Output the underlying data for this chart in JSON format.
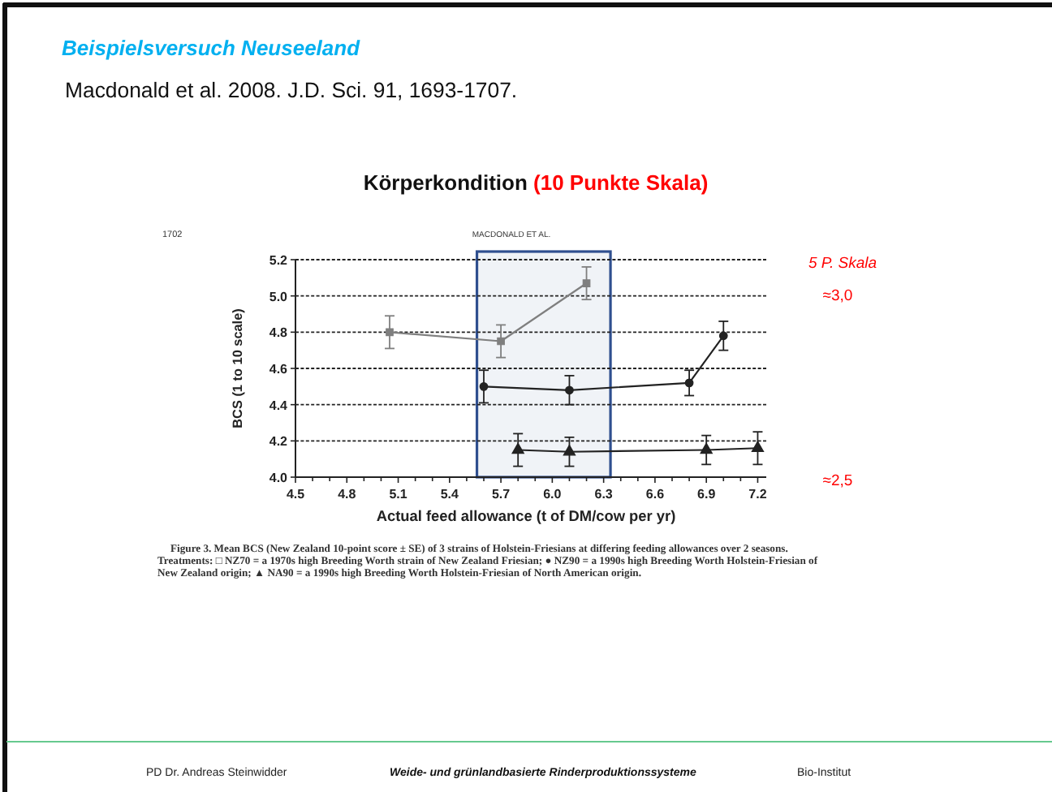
{
  "chart_data": {
    "type": "line",
    "title": "Körperkondition (10 Punkte Skala)",
    "xlabel": "Actual feed allowance (t of DM/cow per yr)",
    "ylabel": "BCS (1 to 10 scale)",
    "xlim": [
      4.5,
      7.25
    ],
    "xticks": [
      4.5,
      {
        "value": 4.6,
        "label": null
      },
      {
        "value": 4.7,
        "label": null
      },
      4.8,
      {
        "value": 4.9,
        "label": null
      },
      {
        "value": 5.0,
        "label": null
      },
      5.1,
      {
        "value": 5.2,
        "label": null
      },
      {
        "value": 5.3,
        "label": null
      },
      5.4,
      {
        "value": 5.5,
        "label": null
      },
      {
        "value": 5.6,
        "label": null
      },
      5.7,
      {
        "value": 5.8,
        "label": null
      },
      {
        "value": 5.9,
        "label": null
      },
      {
        "value": 6,
        "label": "6.0"
      },
      {
        "value": 6.1,
        "label": null
      },
      {
        "value": 6.2,
        "label": null
      },
      6.3,
      {
        "value": 6.4,
        "label": null
      },
      {
        "value": 6.5,
        "label": null
      },
      6.6,
      {
        "value": 6.7,
        "label": null
      },
      {
        "value": 6.8,
        "label": null
      },
      6.9,
      {
        "value": 7.0,
        "label": null
      },
      {
        "value": 7.1,
        "label": null
      },
      7.2
    ],
    "ylim": [
      4.0,
      5.2
    ],
    "yticks": [
      {
        "value": 4,
        "label": "4.0"
      },
      4.2,
      4.4,
      4.6,
      4.8,
      {
        "value": 5,
        "label": "5.0"
      },
      5.2
    ],
    "grid": "y",
    "line_style": "solid",
    "series": [
      {
        "color": "#7f7f7f",
        "marker": "square",
        "x": [
          5.05,
          5.7,
          6.2
        ],
        "values": [
          4.8,
          4.75,
          5.07
        ],
        "errors": [
          0.09,
          0.09,
          0.09
        ]
      },
      {
        "color": "#222222",
        "marker": "circle",
        "x": [
          5.6,
          6.1,
          6.8,
          7.0
        ],
        "values": [
          4.5,
          4.48,
          4.52,
          4.78
        ],
        "errors": [
          0.09,
          0.08,
          0.07,
          0.08
        ]
      },
      {
        "color": "#222222",
        "marker": "triangle",
        "x": [
          5.8,
          6.1,
          6.9,
          7.2
        ],
        "values": [
          4.15,
          4.14,
          4.15,
          4.16
        ],
        "errors": [
          0.09,
          0.08,
          0.08,
          0.09
        ]
      }
    ],
    "bands": [
      {
        "axis": "x",
        "from": 5.56,
        "to": 6.34,
        "color": "#2f4f8f"
      }
    ],
    "annotations": [
      "Beispielsversuch Neuseeland",
      "Macdonald et al. 2008. J.D. Sci. 91, 1693-1707.",
      "1702",
      "MACDONALD ET AL.",
      "5 P. Skala",
      "≈3,0",
      "≈2,5",
      "Figure 3. Mean BCS (New Zealand 10-point score ± SE) of 3 strains of Holstein-Friesians at differing feeding allowances over 2 seasons. Treatments: □ NZ70 = a 1970s high Breeding Worth strain of New Zealand Friesian; ● NZ90 = a 1990s high Breeding Worth Holstein-Friesian of New Zealand origin; ▲ NA90 = a 1990s high Breeding Worth Holstein-Friesian of North American origin.",
      "PD Dr. Andreas Steinwidder",
      "Weide- und grünlandbasierte Rinderproduktionssysteme",
      "Bio-Institut"
    ]
  }
}
